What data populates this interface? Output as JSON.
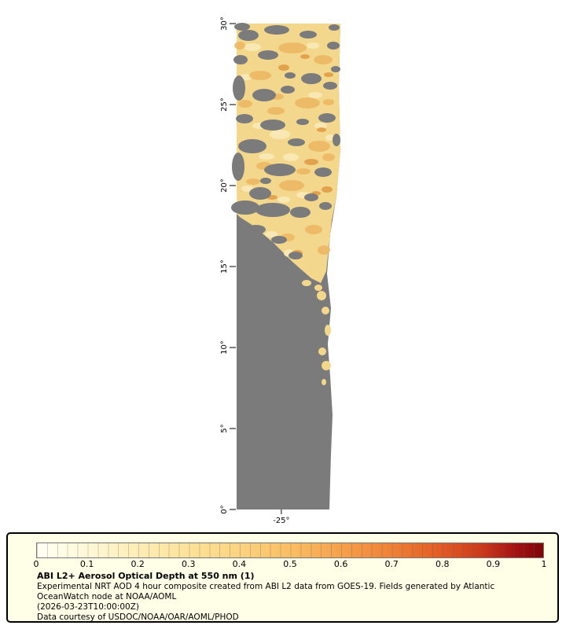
{
  "chart_data": {
    "type": "heatmap",
    "title": "ABI L2+ Aerosol Optical Depth at 550 nm (1)",
    "variable": "Aerosol Optical Depth at 550 nm",
    "y_axis": {
      "range": [
        0,
        30
      ],
      "ticks": [
        {
          "value": 0,
          "label": "0°"
        },
        {
          "value": 5,
          "label": "5°"
        },
        {
          "value": 10,
          "label": "10°"
        },
        {
          "value": 15,
          "label": "15°"
        },
        {
          "value": 20,
          "label": "20°"
        },
        {
          "value": 25,
          "label": "25°"
        },
        {
          "value": 30,
          "label": "30°"
        }
      ]
    },
    "x_axis": {
      "range": [
        -27.8,
        -21.45
      ],
      "ticks": [
        {
          "value": -25,
          "label": "-25°"
        }
      ]
    },
    "colorbar": {
      "range": [
        0,
        1
      ],
      "tick_labels": [
        "0",
        "0.1",
        "0.2",
        "0.3",
        "0.4",
        "0.5",
        "0.6",
        "0.7",
        "0.8",
        "0.9",
        "1"
      ],
      "stops": [
        {
          "p": 0,
          "c": "#FFFFF4"
        },
        {
          "p": 0.08,
          "c": "#FFFADE"
        },
        {
          "p": 0.18,
          "c": "#FEEFBC"
        },
        {
          "p": 0.3,
          "c": "#FDE29A"
        },
        {
          "p": 0.4,
          "c": "#FCD381"
        },
        {
          "p": 0.5,
          "c": "#FABE64"
        },
        {
          "p": 0.6,
          "c": "#F6A14C"
        },
        {
          "p": 0.7,
          "c": "#EF8136"
        },
        {
          "p": 0.8,
          "c": "#E15A25"
        },
        {
          "p": 0.88,
          "c": "#CB3A1B"
        },
        {
          "p": 0.94,
          "c": "#A81414"
        },
        {
          "p": 1,
          "c": "#7E0407"
        }
      ]
    },
    "colors": {
      "no_data": "#7B7B7B",
      "field_base": "#F3D78C",
      "field_light": "#FAE9B6",
      "field_orange": "#EDB761",
      "field_deep": "#E0973F",
      "page_bg": "#FFFFFF",
      "legend_bg": "#FFFFE8",
      "legend_border": "#000000",
      "axis": "#000000"
    }
  },
  "legend": {
    "title": "ABI L2+ Aerosol Optical Depth at 550 nm (1)",
    "lines": [
      "Experimental NRT AOD 4 hour composite created from ABI L2 data from GOES-19. Fields generated by Atlantic",
      "OceanWatch node at NOAA/AOML",
      "(2026-03-23T10:00:00Z)",
      "Data courtesy of USDOC/NOAA/OAR/AOML/PHOD"
    ]
  }
}
